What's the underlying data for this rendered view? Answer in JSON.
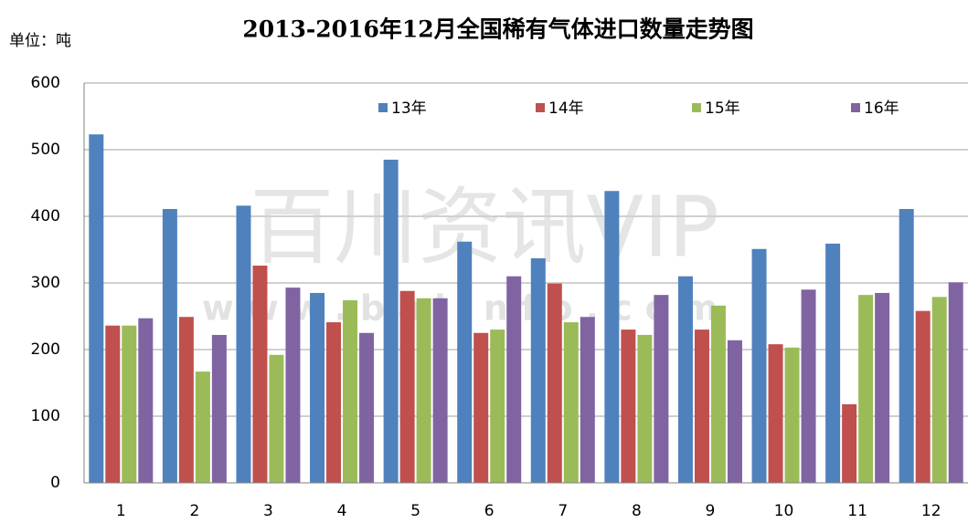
{
  "chart_data": {
    "type": "bar",
    "title": "2013-2016年12月全国稀有气体进口数量走势图",
    "unit_label": "单位：吨",
    "watermark": [
      "百川资讯VIP",
      "www.baiinfo.com"
    ],
    "categories": [
      "1",
      "2",
      "3",
      "4",
      "5",
      "6",
      "7",
      "8",
      "9",
      "10",
      "11",
      "12"
    ],
    "series": [
      {
        "name": "13年",
        "color": "#4f81bd",
        "values": [
          523,
          411,
          416,
          285,
          485,
          362,
          337,
          438,
          310,
          351,
          359,
          411
        ]
      },
      {
        "name": "14年",
        "color": "#c0504d",
        "values": [
          236,
          249,
          326,
          241,
          288,
          225,
          299,
          230,
          230,
          208,
          118,
          258
        ]
      },
      {
        "name": "15年",
        "color": "#9bbb59",
        "values": [
          236,
          167,
          192,
          274,
          277,
          230,
          241,
          222,
          266,
          203,
          282,
          279
        ]
      },
      {
        "name": "16年",
        "color": "#8064a2",
        "values": [
          247,
          222,
          293,
          225,
          277,
          310,
          249,
          282,
          214,
          290,
          285,
          301
        ]
      }
    ],
    "ylim": [
      0,
      600
    ],
    "yticks": [
      0,
      100,
      200,
      300,
      400,
      500,
      600
    ],
    "grid": true,
    "legend": "top"
  }
}
